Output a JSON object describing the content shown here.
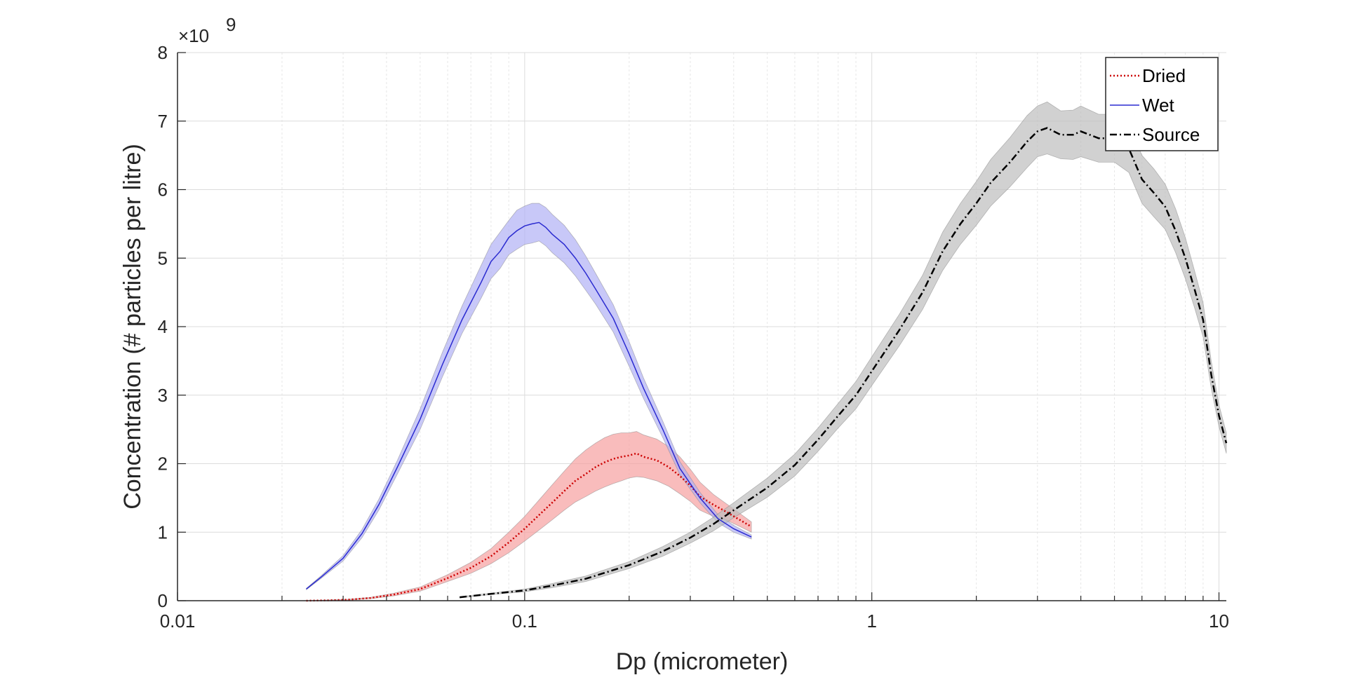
{
  "chart_data": {
    "type": "line",
    "title": "",
    "xlabel": "Dp (micrometer)",
    "ylabel": "Concentration (# particles per litre)",
    "x_scale": "log",
    "xlim": [
      0.01,
      10.5
    ],
    "ylim": [
      0,
      8
    ],
    "y_multiplier_label": "×10",
    "y_multiplier_exponent": "9",
    "x_ticks": [
      {
        "value": 0.01,
        "label": "0.01"
      },
      {
        "value": 0.1,
        "label": "0.1"
      },
      {
        "value": 1,
        "label": "1"
      },
      {
        "value": 10,
        "label": "10"
      }
    ],
    "y_ticks": [
      {
        "value": 0,
        "label": "0"
      },
      {
        "value": 1,
        "label": "1"
      },
      {
        "value": 2,
        "label": "2"
      },
      {
        "value": 3,
        "label": "3"
      },
      {
        "value": 4,
        "label": "4"
      },
      {
        "value": 5,
        "label": "5"
      },
      {
        "value": 6,
        "label": "6"
      },
      {
        "value": 7,
        "label": "7"
      },
      {
        "value": 8,
        "label": "8"
      }
    ],
    "grid": true,
    "legend_position": "top-right",
    "series": [
      {
        "name": "Dried",
        "color": "#cc0000",
        "band_color": "#f7a0a0",
        "line_style": "dotted",
        "x": [
          0.0235,
          0.027,
          0.031,
          0.036,
          0.042,
          0.05,
          0.06,
          0.07,
          0.08,
          0.09,
          0.1,
          0.11,
          0.12,
          0.13,
          0.14,
          0.15,
          0.16,
          0.17,
          0.18,
          0.19,
          0.2,
          0.21,
          0.22,
          0.24,
          0.26,
          0.28,
          0.3,
          0.32,
          0.35,
          0.38,
          0.41,
          0.45
        ],
        "y": [
          0.0,
          0.005,
          0.015,
          0.04,
          0.09,
          0.17,
          0.33,
          0.48,
          0.65,
          0.85,
          1.05,
          1.25,
          1.43,
          1.6,
          1.75,
          1.85,
          1.95,
          2.02,
          2.07,
          2.1,
          2.12,
          2.15,
          2.1,
          2.05,
          1.95,
          1.82,
          1.68,
          1.52,
          1.4,
          1.3,
          1.2,
          1.08
        ],
        "upper": [
          0.0,
          0.01,
          0.02,
          0.05,
          0.11,
          0.2,
          0.38,
          0.56,
          0.76,
          1.0,
          1.23,
          1.47,
          1.69,
          1.89,
          2.07,
          2.2,
          2.3,
          2.38,
          2.43,
          2.45,
          2.45,
          2.47,
          2.42,
          2.36,
          2.25,
          2.1,
          1.92,
          1.73,
          1.55,
          1.42,
          1.3,
          1.15
        ],
        "lower": [
          0.0,
          0.002,
          0.008,
          0.03,
          0.07,
          0.14,
          0.28,
          0.4,
          0.54,
          0.7,
          0.87,
          1.03,
          1.18,
          1.32,
          1.44,
          1.52,
          1.6,
          1.66,
          1.71,
          1.75,
          1.79,
          1.81,
          1.8,
          1.75,
          1.67,
          1.56,
          1.45,
          1.32,
          1.23,
          1.18,
          1.1,
          1.0
        ]
      },
      {
        "name": "Wet",
        "color": "#2b2bd0",
        "band_color": "#b0b0f5",
        "line_style": "solid",
        "x": [
          0.0235,
          0.026,
          0.03,
          0.034,
          0.038,
          0.043,
          0.05,
          0.058,
          0.066,
          0.075,
          0.08,
          0.085,
          0.09,
          0.095,
          0.1,
          0.105,
          0.11,
          0.115,
          0.12,
          0.13,
          0.14,
          0.15,
          0.16,
          0.18,
          0.2,
          0.22,
          0.25,
          0.28,
          0.32,
          0.36,
          0.4,
          0.45
        ],
        "y": [
          0.17,
          0.35,
          0.62,
          0.98,
          1.4,
          1.95,
          2.65,
          3.45,
          4.1,
          4.65,
          4.95,
          5.1,
          5.3,
          5.4,
          5.47,
          5.5,
          5.52,
          5.45,
          5.35,
          5.2,
          5.0,
          4.78,
          4.55,
          4.12,
          3.6,
          3.1,
          2.5,
          1.93,
          1.5,
          1.2,
          1.05,
          0.93
        ],
        "upper": [
          0.18,
          0.37,
          0.66,
          1.04,
          1.48,
          2.05,
          2.8,
          3.63,
          4.3,
          4.9,
          5.2,
          5.38,
          5.55,
          5.7,
          5.76,
          5.8,
          5.8,
          5.74,
          5.64,
          5.48,
          5.27,
          5.03,
          4.78,
          4.32,
          3.78,
          3.25,
          2.62,
          2.03,
          1.58,
          1.26,
          1.1,
          0.96
        ],
        "lower": [
          0.16,
          0.33,
          0.58,
          0.92,
          1.32,
          1.85,
          2.5,
          3.27,
          3.9,
          4.42,
          4.7,
          4.85,
          5.05,
          5.13,
          5.2,
          5.22,
          5.25,
          5.18,
          5.08,
          4.93,
          4.74,
          4.53,
          4.33,
          3.92,
          3.42,
          2.95,
          2.38,
          1.84,
          1.43,
          1.14,
          1.0,
          0.9
        ]
      },
      {
        "name": "Source",
        "color": "#000000",
        "band_color": "#bdbdbd",
        "line_style": "dashdot",
        "x": [
          0.065,
          0.08,
          0.1,
          0.12,
          0.15,
          0.2,
          0.25,
          0.3,
          0.35,
          0.4,
          0.5,
          0.6,
          0.7,
          0.8,
          0.9,
          1.0,
          1.2,
          1.4,
          1.6,
          1.8,
          2.0,
          2.2,
          2.5,
          2.8,
          3.0,
          3.2,
          3.5,
          3.8,
          4.0,
          4.5,
          5.0,
          5.5,
          6.0,
          6.5,
          7.0,
          7.5,
          8.0,
          8.5,
          9.0,
          9.5,
          10.0,
          10.5
        ],
        "y": [
          0.05,
          0.1,
          0.15,
          0.22,
          0.32,
          0.52,
          0.72,
          0.92,
          1.12,
          1.32,
          1.65,
          1.98,
          2.35,
          2.7,
          3.0,
          3.35,
          3.95,
          4.5,
          5.1,
          5.5,
          5.8,
          6.1,
          6.4,
          6.7,
          6.85,
          6.9,
          6.8,
          6.8,
          6.85,
          6.75,
          6.75,
          6.6,
          6.15,
          5.95,
          5.75,
          5.4,
          5.0,
          4.55,
          4.1,
          3.3,
          2.7,
          2.3
        ],
        "upper": [
          0.06,
          0.11,
          0.17,
          0.25,
          0.36,
          0.57,
          0.79,
          1.0,
          1.22,
          1.43,
          1.79,
          2.14,
          2.52,
          2.88,
          3.2,
          3.56,
          4.18,
          4.75,
          5.38,
          5.8,
          6.12,
          6.44,
          6.76,
          7.08,
          7.22,
          7.28,
          7.15,
          7.16,
          7.22,
          7.1,
          7.1,
          6.95,
          6.5,
          6.3,
          6.08,
          5.72,
          5.3,
          4.82,
          4.35,
          3.5,
          2.86,
          2.45
        ],
        "lower": [
          0.04,
          0.09,
          0.13,
          0.19,
          0.28,
          0.47,
          0.65,
          0.84,
          1.02,
          1.21,
          1.51,
          1.82,
          2.18,
          2.52,
          2.8,
          3.14,
          3.72,
          4.25,
          4.82,
          5.2,
          5.48,
          5.76,
          6.04,
          6.32,
          6.48,
          6.52,
          6.45,
          6.44,
          6.48,
          6.4,
          6.4,
          6.25,
          5.8,
          5.6,
          5.42,
          5.08,
          4.7,
          4.28,
          3.85,
          3.1,
          2.54,
          2.15
        ]
      }
    ]
  }
}
